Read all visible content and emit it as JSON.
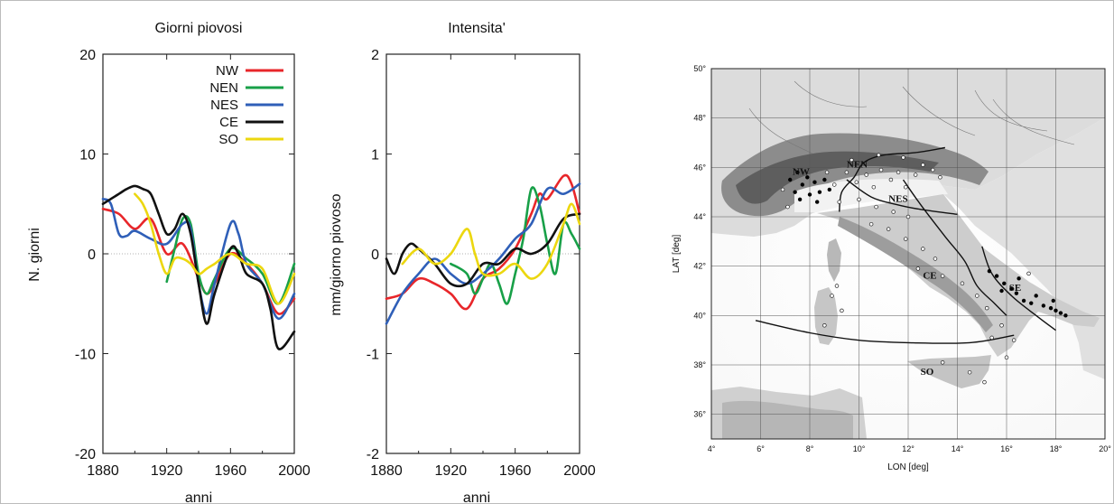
{
  "chart_data": [
    {
      "type": "line",
      "title": "Giorni piovosi",
      "xlabel": "anni",
      "ylabel": "N. giorni",
      "xlim": [
        1880,
        2000
      ],
      "ylim": [
        -20,
        20
      ],
      "x_ticks": [
        "1880",
        "1920",
        "1960",
        "2000"
      ],
      "y_ticks": [
        "20",
        "10",
        "0",
        "-10",
        "-20"
      ],
      "legend": "top-right",
      "series": [
        {
          "name": "NW",
          "color": "#e8262a",
          "points": [
            [
              1880,
              4.5
            ],
            [
              1890,
              4
            ],
            [
              1900,
              2.5
            ],
            [
              1910,
              3.5
            ],
            [
              1920,
              0
            ],
            [
              1930,
              1
            ],
            [
              1940,
              -2.5
            ],
            [
              1945,
              -4
            ],
            [
              1950,
              -3
            ],
            [
              1960,
              0
            ],
            [
              1970,
              -1
            ],
            [
              1980,
              -3
            ],
            [
              1990,
              -6
            ],
            [
              2000,
              -4.5
            ]
          ]
        },
        {
          "name": "NEN",
          "color": "#18a048",
          "points": [
            [
              1920,
              -2.8
            ],
            [
              1925,
              0.5
            ],
            [
              1930,
              3.5
            ],
            [
              1935,
              3
            ],
            [
              1940,
              -2
            ],
            [
              1945,
              -4
            ],
            [
              1950,
              -2.5
            ],
            [
              1960,
              0.5
            ],
            [
              1970,
              -0.5
            ],
            [
              1980,
              -2
            ],
            [
              1990,
              -5
            ],
            [
              2000,
              -1
            ]
          ]
        },
        {
          "name": "NES",
          "color": "#2f5fb8",
          "points": [
            [
              1880,
              5.5
            ],
            [
              1885,
              5
            ],
            [
              1890,
              2
            ],
            [
              1895,
              1.8
            ],
            [
              1900,
              2.3
            ],
            [
              1910,
              1.5
            ],
            [
              1920,
              1
            ],
            [
              1930,
              3
            ],
            [
              1935,
              2.5
            ],
            [
              1940,
              -3
            ],
            [
              1945,
              -6
            ],
            [
              1950,
              -3
            ],
            [
              1960,
              3
            ],
            [
              1965,
              2
            ],
            [
              1970,
              -1
            ],
            [
              1980,
              -3
            ],
            [
              1990,
              -6.5
            ],
            [
              2000,
              -4
            ]
          ]
        },
        {
          "name": "CE",
          "color": "#111111",
          "points": [
            [
              1880,
              5
            ],
            [
              1890,
              6
            ],
            [
              1895,
              6.5
            ],
            [
              1900,
              6.8
            ],
            [
              1905,
              6.5
            ],
            [
              1910,
              6
            ],
            [
              1915,
              4
            ],
            [
              1920,
              2
            ],
            [
              1925,
              2.5
            ],
            [
              1930,
              4
            ],
            [
              1935,
              2
            ],
            [
              1940,
              -3
            ],
            [
              1945,
              -7
            ],
            [
              1950,
              -4
            ],
            [
              1960,
              0.5
            ],
            [
              1965,
              0
            ],
            [
              1970,
              -2
            ],
            [
              1980,
              -3
            ],
            [
              1985,
              -5.5
            ],
            [
              1990,
              -9.5
            ],
            [
              2000,
              -7.8
            ]
          ]
        },
        {
          "name": "SO",
          "color": "#ecd70f",
          "points": [
            [
              1900,
              6
            ],
            [
              1905,
              5
            ],
            [
              1910,
              3
            ],
            [
              1915,
              0
            ],
            [
              1920,
              -2
            ],
            [
              1925,
              -0.5
            ],
            [
              1930,
              -0.5
            ],
            [
              1935,
              -1
            ],
            [
              1940,
              -2
            ],
            [
              1945,
              -1.5
            ],
            [
              1950,
              -1
            ],
            [
              1960,
              0
            ],
            [
              1970,
              -1
            ],
            [
              1980,
              -1.5
            ],
            [
              1990,
              -5
            ],
            [
              2000,
              -2
            ]
          ]
        }
      ]
    },
    {
      "type": "line",
      "title": "Intensita'",
      "xlabel": "anni",
      "ylabel": "mm/giorno piovoso",
      "xlim": [
        1880,
        2000
      ],
      "ylim": [
        -2,
        2
      ],
      "x_ticks": [
        "1880",
        "1920",
        "1960",
        "2000"
      ],
      "y_ticks": [
        "2",
        "1",
        "0",
        "-1",
        "-2"
      ],
      "series": [
        {
          "name": "NW",
          "color": "#e8262a",
          "points": [
            [
              1880,
              -0.45
            ],
            [
              1890,
              -0.4
            ],
            [
              1900,
              -0.25
            ],
            [
              1910,
              -0.3
            ],
            [
              1920,
              -0.4
            ],
            [
              1930,
              -0.55
            ],
            [
              1940,
              -0.25
            ],
            [
              1950,
              -0.15
            ],
            [
              1960,
              0.05
            ],
            [
              1970,
              0.4
            ],
            [
              1975,
              0.6
            ],
            [
              1980,
              0.55
            ],
            [
              1990,
              0.78
            ],
            [
              1995,
              0.7
            ],
            [
              2000,
              0.4
            ]
          ]
        },
        {
          "name": "NEN",
          "color": "#18a048",
          "points": [
            [
              1920,
              -0.1
            ],
            [
              1930,
              -0.2
            ],
            [
              1935,
              -0.4
            ],
            [
              1940,
              -0.25
            ],
            [
              1945,
              -0.1
            ],
            [
              1950,
              -0.3
            ],
            [
              1955,
              -0.5
            ],
            [
              1960,
              -0.2
            ],
            [
              1965,
              0.15
            ],
            [
              1970,
              0.65
            ],
            [
              1975,
              0.5
            ],
            [
              1980,
              0.1
            ],
            [
              1985,
              -0.2
            ],
            [
              1990,
              0.3
            ],
            [
              1995,
              0.2
            ],
            [
              2000,
              0.05
            ]
          ]
        },
        {
          "name": "NES",
          "color": "#2f5fb8",
          "points": [
            [
              1880,
              -0.7
            ],
            [
              1890,
              -0.4
            ],
            [
              1900,
              -0.2
            ],
            [
              1910,
              -0.05
            ],
            [
              1920,
              -0.2
            ],
            [
              1930,
              -0.3
            ],
            [
              1940,
              -0.2
            ],
            [
              1950,
              -0.05
            ],
            [
              1960,
              0.15
            ],
            [
              1970,
              0.3
            ],
            [
              1980,
              0.65
            ],
            [
              1990,
              0.6
            ],
            [
              2000,
              0.7
            ]
          ]
        },
        {
          "name": "CE",
          "color": "#111111",
          "points": [
            [
              1880,
              -0.05
            ],
            [
              1885,
              -0.2
            ],
            [
              1890,
              0
            ],
            [
              1895,
              0.1
            ],
            [
              1900,
              0.05
            ],
            [
              1910,
              -0.1
            ],
            [
              1920,
              -0.3
            ],
            [
              1930,
              -0.3
            ],
            [
              1940,
              -0.1
            ],
            [
              1950,
              -0.1
            ],
            [
              1960,
              0.05
            ],
            [
              1970,
              0
            ],
            [
              1980,
              0.1
            ],
            [
              1990,
              0.35
            ],
            [
              2000,
              0.4
            ]
          ]
        },
        {
          "name": "SO",
          "color": "#ecd70f",
          "points": [
            [
              1890,
              -0.1
            ],
            [
              1900,
              0.05
            ],
            [
              1910,
              -0.1
            ],
            [
              1920,
              0
            ],
            [
              1930,
              0.25
            ],
            [
              1935,
              0
            ],
            [
              1940,
              -0.2
            ],
            [
              1950,
              -0.2
            ],
            [
              1960,
              -0.1
            ],
            [
              1970,
              -0.25
            ],
            [
              1980,
              -0.1
            ],
            [
              1990,
              0.3
            ],
            [
              1995,
              0.5
            ],
            [
              2000,
              0.3
            ]
          ]
        }
      ]
    },
    {
      "type": "scatter",
      "xlabel": "LON [deg]",
      "ylabel": "LAT [deg]",
      "xlim": [
        4,
        20
      ],
      "ylim": [
        35,
        50
      ],
      "x_ticks": [
        "4°",
        "6°",
        "8°",
        "10°",
        "12°",
        "14°",
        "16°",
        "18°",
        "20°"
      ],
      "y_ticks": [
        "50°",
        "48°",
        "46°",
        "44°",
        "42°",
        "40°",
        "38°",
        "36°"
      ],
      "grid": true,
      "region_labels": [
        "NW",
        "NEN",
        "NES",
        "CE",
        "SE",
        "SO"
      ],
      "region_label_positions": [
        [
          7.3,
          45.7
        ],
        [
          9.5,
          46.0
        ],
        [
          11.2,
          44.6
        ],
        [
          12.6,
          41.5
        ],
        [
          16.1,
          41.0
        ],
        [
          12.5,
          37.6
        ]
      ],
      "boundaries": [
        [
          [
            9.2,
            44.2
          ],
          [
            9.3,
            45.0
          ],
          [
            9.8,
            45.6
          ],
          [
            10.2,
            46.2
          ],
          [
            11.0,
            46.5
          ],
          [
            12.3,
            46.6
          ],
          [
            13.5,
            46.8
          ]
        ],
        [
          [
            9.5,
            45.5
          ],
          [
            10.5,
            44.8
          ],
          [
            11.5,
            44.5
          ],
          [
            12.5,
            44.3
          ],
          [
            14.0,
            44.1
          ]
        ],
        [
          [
            11.8,
            45.5
          ],
          [
            12.5,
            44.5
          ],
          [
            13.5,
            43.2
          ],
          [
            14.3,
            42.2
          ],
          [
            14.8,
            41.2
          ],
          [
            15.5,
            40.5
          ],
          [
            16.0,
            40.0
          ]
        ],
        [
          [
            5.8,
            39.8
          ],
          [
            8.0,
            39.3
          ],
          [
            10.0,
            39.0
          ],
          [
            12.0,
            38.9
          ],
          [
            14.5,
            38.9
          ],
          [
            16.3,
            39.2
          ]
        ],
        [
          [
            15.0,
            42.8
          ],
          [
            15.4,
            41.7
          ],
          [
            16.2,
            40.8
          ],
          [
            17.2,
            40.0
          ],
          [
            18.0,
            39.4
          ]
        ]
      ],
      "stations_filled": [
        [
          7.2,
          45.5
        ],
        [
          7.4,
          45.0
        ],
        [
          7.5,
          45.8
        ],
        [
          7.7,
          45.3
        ],
        [
          7.9,
          45.6
        ],
        [
          8.0,
          44.9
        ],
        [
          8.2,
          45.4
        ],
        [
          8.4,
          45.0
        ],
        [
          8.6,
          45.5
        ],
        [
          8.8,
          45.1
        ],
        [
          7.6,
          44.7
        ],
        [
          8.3,
          44.6
        ],
        [
          15.3,
          41.8
        ],
        [
          15.6,
          41.6
        ],
        [
          15.9,
          41.3
        ],
        [
          16.2,
          41.1
        ],
        [
          16.4,
          40.9
        ],
        [
          16.7,
          40.6
        ],
        [
          17.0,
          40.5
        ],
        [
          17.2,
          40.8
        ],
        [
          17.5,
          40.4
        ],
        [
          17.8,
          40.3
        ],
        [
          18.0,
          40.2
        ],
        [
          18.2,
          40.1
        ],
        [
          18.4,
          40.0
        ],
        [
          15.8,
          41.0
        ],
        [
          16.5,
          41.5
        ],
        [
          17.9,
          40.6
        ]
      ],
      "stations_open": [
        [
          6.9,
          45.1
        ],
        [
          7.1,
          44.4
        ],
        [
          8.7,
          45.8
        ],
        [
          9.0,
          45.3
        ],
        [
          9.2,
          44.6
        ],
        [
          9.5,
          45.8
        ],
        [
          9.9,
          45.4
        ],
        [
          10.3,
          45.7
        ],
        [
          10.6,
          45.2
        ],
        [
          10.9,
          45.9
        ],
        [
          11.3,
          45.5
        ],
        [
          11.6,
          45.8
        ],
        [
          11.9,
          45.2
        ],
        [
          12.3,
          45.7
        ],
        [
          12.6,
          46.1
        ],
        [
          13.0,
          45.9
        ],
        [
          13.3,
          45.6
        ],
        [
          10.0,
          44.7
        ],
        [
          10.7,
          44.4
        ],
        [
          11.4,
          44.2
        ],
        [
          12.0,
          44.0
        ],
        [
          9.7,
          46.3
        ],
        [
          10.8,
          46.5
        ],
        [
          11.8,
          46.4
        ],
        [
          10.5,
          43.7
        ],
        [
          11.2,
          43.5
        ],
        [
          11.9,
          43.1
        ],
        [
          12.6,
          42.7
        ],
        [
          13.1,
          42.3
        ],
        [
          12.4,
          41.9
        ],
        [
          13.4,
          41.6
        ],
        [
          14.2,
          41.3
        ],
        [
          14.8,
          40.8
        ],
        [
          15.2,
          40.3
        ],
        [
          15.8,
          39.6
        ],
        [
          16.3,
          39.0
        ],
        [
          16.0,
          38.3
        ],
        [
          13.4,
          38.1
        ],
        [
          14.5,
          37.7
        ],
        [
          15.1,
          37.3
        ],
        [
          8.9,
          40.8
        ],
        [
          9.3,
          40.2
        ],
        [
          8.6,
          39.6
        ],
        [
          9.1,
          41.2
        ],
        [
          15.4,
          39.1
        ],
        [
          16.9,
          41.7
        ]
      ]
    }
  ]
}
